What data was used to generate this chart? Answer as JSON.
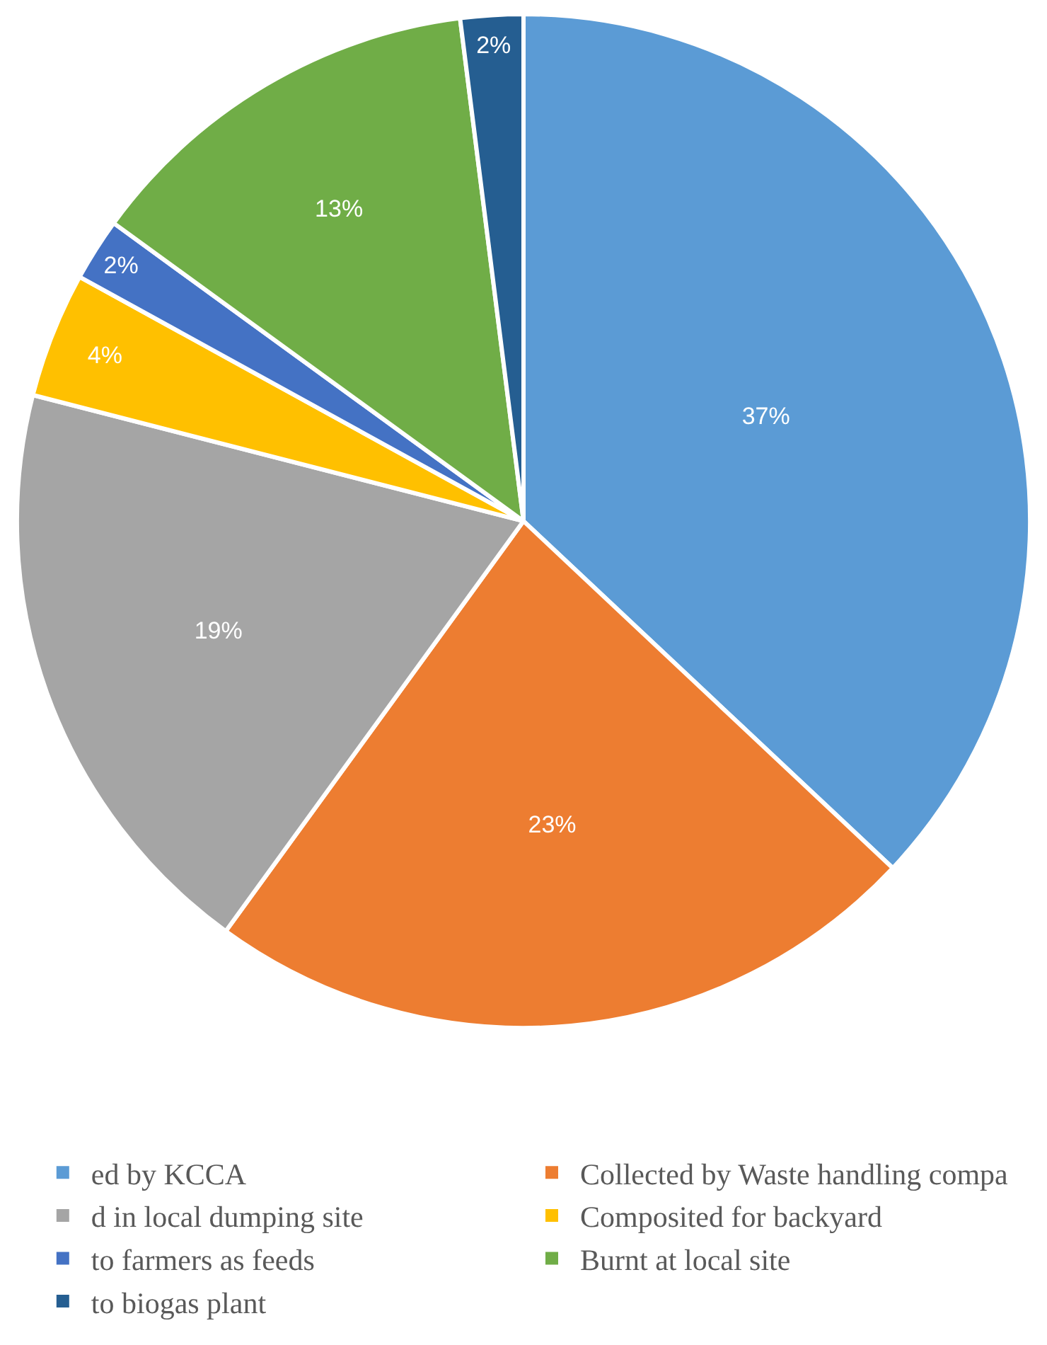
{
  "chart_data": {
    "type": "pie",
    "categories": [
      "ed by KCCA",
      "Collected by Waste handling compa",
      "d in local dumping site",
      "Composited for backyard",
      "to farmers as feeds",
      "Burnt at local site",
      "to biogas plant"
    ],
    "values": [
      37,
      23,
      19,
      4,
      2,
      13,
      2
    ],
    "value_labels": [
      "37%",
      "23%",
      "19%",
      "4%",
      "2%",
      "13%",
      "2%"
    ],
    "colors": [
      "#5b9bd5",
      "#ed7d31",
      "#a5a5a5",
      "#ffc000",
      "#4472c4",
      "#70ad47",
      "#255e91"
    ],
    "legend": "bottom"
  }
}
